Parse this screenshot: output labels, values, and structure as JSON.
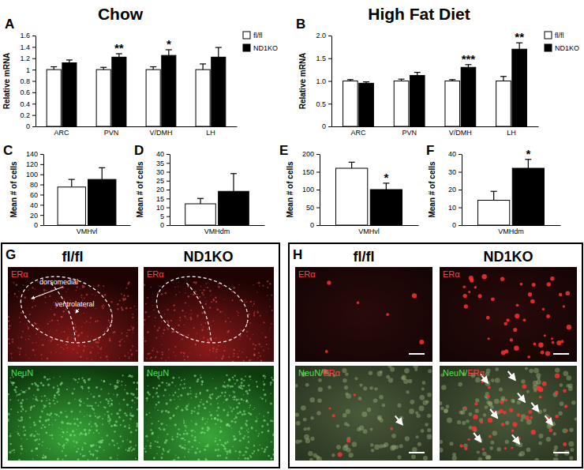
{
  "chart_data": [
    {
      "type": "bar",
      "title": "Chow",
      "categories": [
        "ARC",
        "PVN",
        "V/DMH",
        "LH"
      ],
      "y_label": "Relative mRNA",
      "ylim": [
        0,
        1.6
      ],
      "yticks": [
        0,
        0.2,
        0.4,
        0.6,
        0.8,
        1,
        1.2,
        1.4,
        1.6
      ],
      "legend": "upper right",
      "series": [
        {
          "name": "fl/fl",
          "color": "#ffffff",
          "values": [
            1,
            1,
            1,
            1
          ],
          "errors": [
            0.05,
            0.04,
            0.05,
            0.1
          ]
        },
        {
          "name": "ND1KO",
          "color": "#000000",
          "values": [
            1.12,
            1.22,
            1.25,
            1.22
          ],
          "errors": [
            0.05,
            0.06,
            0.1,
            0.17
          ]
        }
      ],
      "annotations": [
        {
          "text": "**",
          "category": "PVN"
        },
        {
          "text": "*",
          "category": "V/DMH"
        }
      ]
    },
    {
      "type": "bar",
      "title": "High Fat Diet",
      "categories": [
        "ARC",
        "PVN",
        "V/DMH",
        "LH"
      ],
      "y_label": "Relative mRNA",
      "ylim": [
        0,
        2
      ],
      "yticks": [
        0,
        0.5,
        {
          "value": 1,
          "label": "1.0"
        },
        1.5,
        {
          "value": 2,
          "label": "2.0"
        }
      ],
      "legend": "upper right",
      "series": [
        {
          "name": "fl/fl",
          "color": "#ffffff",
          "values": [
            1,
            1,
            1,
            1
          ],
          "errors": [
            0.03,
            0.04,
            0.03,
            0.1
          ]
        },
        {
          "name": "ND1KO",
          "color": "#000000",
          "values": [
            0.95,
            1.12,
            1.3,
            1.7
          ],
          "errors": [
            0.03,
            0.07,
            0.06,
            0.14
          ]
        }
      ],
      "annotations": [
        {
          "text": "***",
          "category": "V/DMH"
        },
        {
          "text": "**",
          "category": "LH"
        }
      ]
    },
    {
      "type": "bar",
      "categories": [
        "VMHvl"
      ],
      "y_label": "Mean # of cells",
      "ylim": [
        0,
        140
      ],
      "yticks": [
        0,
        20,
        40,
        60,
        80,
        100,
        120,
        140
      ],
      "series": [
        {
          "color": "#ffffff",
          "values": [
            75
          ],
          "errors": [
            15
          ]
        },
        {
          "color": "#000000",
          "values": [
            90
          ],
          "errors": [
            23
          ]
        }
      ]
    },
    {
      "type": "bar",
      "categories": [
        "VMHdm"
      ],
      "y_label": "Mean # of cells",
      "ylim": [
        0,
        40
      ],
      "yticks": [
        0,
        5,
        10,
        15,
        20,
        25,
        30,
        35,
        40
      ],
      "series": [
        {
          "color": "#ffffff",
          "values": [
            12
          ],
          "errors": [
            3
          ]
        },
        {
          "color": "#000000",
          "values": [
            19
          ],
          "errors": [
            10
          ]
        }
      ]
    },
    {
      "type": "bar",
      "categories": [
        "VMHvl"
      ],
      "y_label": "Mean # of cells",
      "ylim": [
        0,
        200
      ],
      "yticks": [
        0,
        50,
        100,
        150,
        200
      ],
      "series": [
        {
          "color": "#ffffff",
          "values": [
            160
          ],
          "errors": [
            17
          ]
        },
        {
          "color": "#000000",
          "values": [
            100
          ],
          "errors": [
            18
          ]
        }
      ],
      "annotations": [
        {
          "text": "*",
          "category": "VMHvl"
        }
      ]
    },
    {
      "type": "bar",
      "categories": [
        "VMHdm"
      ],
      "y_label": "Mean # of cells",
      "ylim": [
        0,
        40
      ],
      "yticks": [
        0,
        10,
        20,
        30,
        40
      ],
      "series": [
        {
          "color": "#ffffff",
          "values": [
            14
          ],
          "errors": [
            5
          ]
        },
        {
          "color": "#000000",
          "values": [
            32
          ],
          "errors": [
            5
          ]
        }
      ],
      "annotations": [
        {
          "text": "*",
          "category": "VMHdm"
        }
      ]
    }
  ],
  "figure": {
    "panel_labels": [
      "A",
      "B",
      "C",
      "D",
      "E",
      "F",
      "G",
      "H"
    ],
    "image_panels": [
      {
        "columns": [
          "fl/fl",
          "ND1KO"
        ],
        "rows": [
          {
            "stain": [
              {
                "text": "ERα",
                "color": "#ff4040"
              }
            ],
            "regions": [
              "dorsomedial",
              "ventrolateral"
            ]
          },
          {
            "stain": [
              {
                "text": "NeuN",
                "color": "#50e050"
              }
            ]
          }
        ]
      },
      {
        "columns": [
          "fl/fl",
          "ND1KO"
        ],
        "rows": [
          {
            "stain": [
              {
                "text": "ERα",
                "color": "#ff4040"
              }
            ]
          },
          {
            "stain": [
              {
                "text": "NeuN/",
                "color": "#50e050"
              },
              {
                "text": "ERα",
                "color": "#ff4040"
              }
            ]
          }
        ]
      }
    ]
  }
}
